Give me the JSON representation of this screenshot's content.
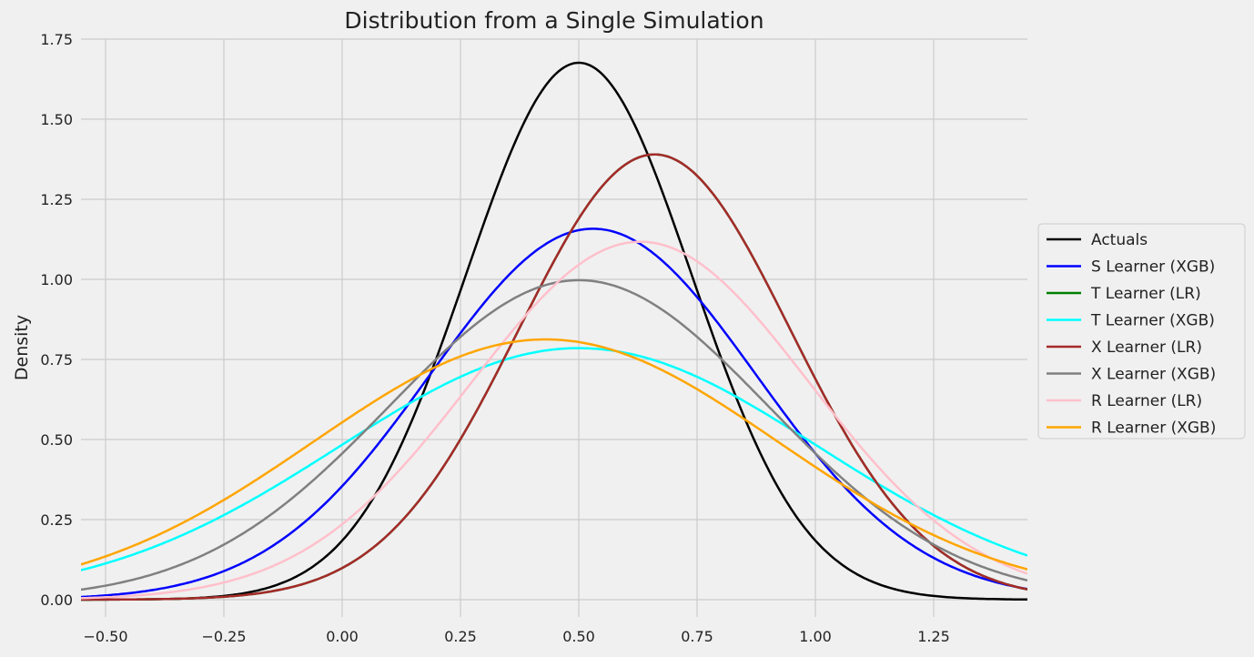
{
  "chart_data": {
    "type": "line",
    "title": "Distribution from a Single Simulation",
    "xlabel": "",
    "ylabel": "Density",
    "xlim": [
      -0.552,
      1.448
    ],
    "ylim": [
      -0.05,
      1.76
    ],
    "grid": true,
    "legend_position": "center-right-outside",
    "xticks": [
      -0.5,
      -0.25,
      0.0,
      0.25,
      0.5,
      0.75,
      1.0,
      1.25
    ],
    "xtick_labels": [
      "−0.50",
      "−0.25",
      "0.00",
      "0.25",
      "0.50",
      "0.75",
      "1.00",
      "1.25"
    ],
    "yticks": [
      0,
      0.25,
      0.5,
      0.75,
      1.0,
      1.25,
      1.5,
      1.75
    ],
    "ytick_labels": [
      "0.00",
      "0.25",
      "0.50",
      "0.75",
      "1.00",
      "1.25",
      "1.50",
      "1.75"
    ],
    "series": [
      {
        "name": "Actuals",
        "color": "#000000",
        "mean": 0.5,
        "std": 0.238,
        "peak_density": 1.675
      },
      {
        "name": "S Learner (XGB)",
        "color": "#0000ff",
        "mean": 0.53,
        "std": 0.3445,
        "peak_density": 1.158
      },
      {
        "name": "T Learner (LR)",
        "color": "#008000",
        "mean": 0.66,
        "std": 0.287,
        "peak_density": 1.39
      },
      {
        "name": "T Learner (XGB)",
        "color": "#00ffff",
        "mean": 0.5,
        "std": 0.508,
        "peak_density": 0.785
      },
      {
        "name": "X Learner (LR)",
        "color": "#a52a2a",
        "mean": 0.66,
        "std": 0.287,
        "peak_density": 1.39
      },
      {
        "name": "X Learner (XGB)",
        "color": "#808080",
        "mean": 0.5,
        "std": 0.4,
        "peak_density": 0.997
      },
      {
        "name": "R Learner (LR)",
        "color": "#ffc0cb",
        "mean": 0.63,
        "std": 0.357,
        "peak_density": 1.117
      },
      {
        "name": "R Learner (XGB)",
        "color": "#ffa500",
        "mean": 0.43,
        "std": 0.491,
        "peak_density": 0.813
      }
    ]
  }
}
